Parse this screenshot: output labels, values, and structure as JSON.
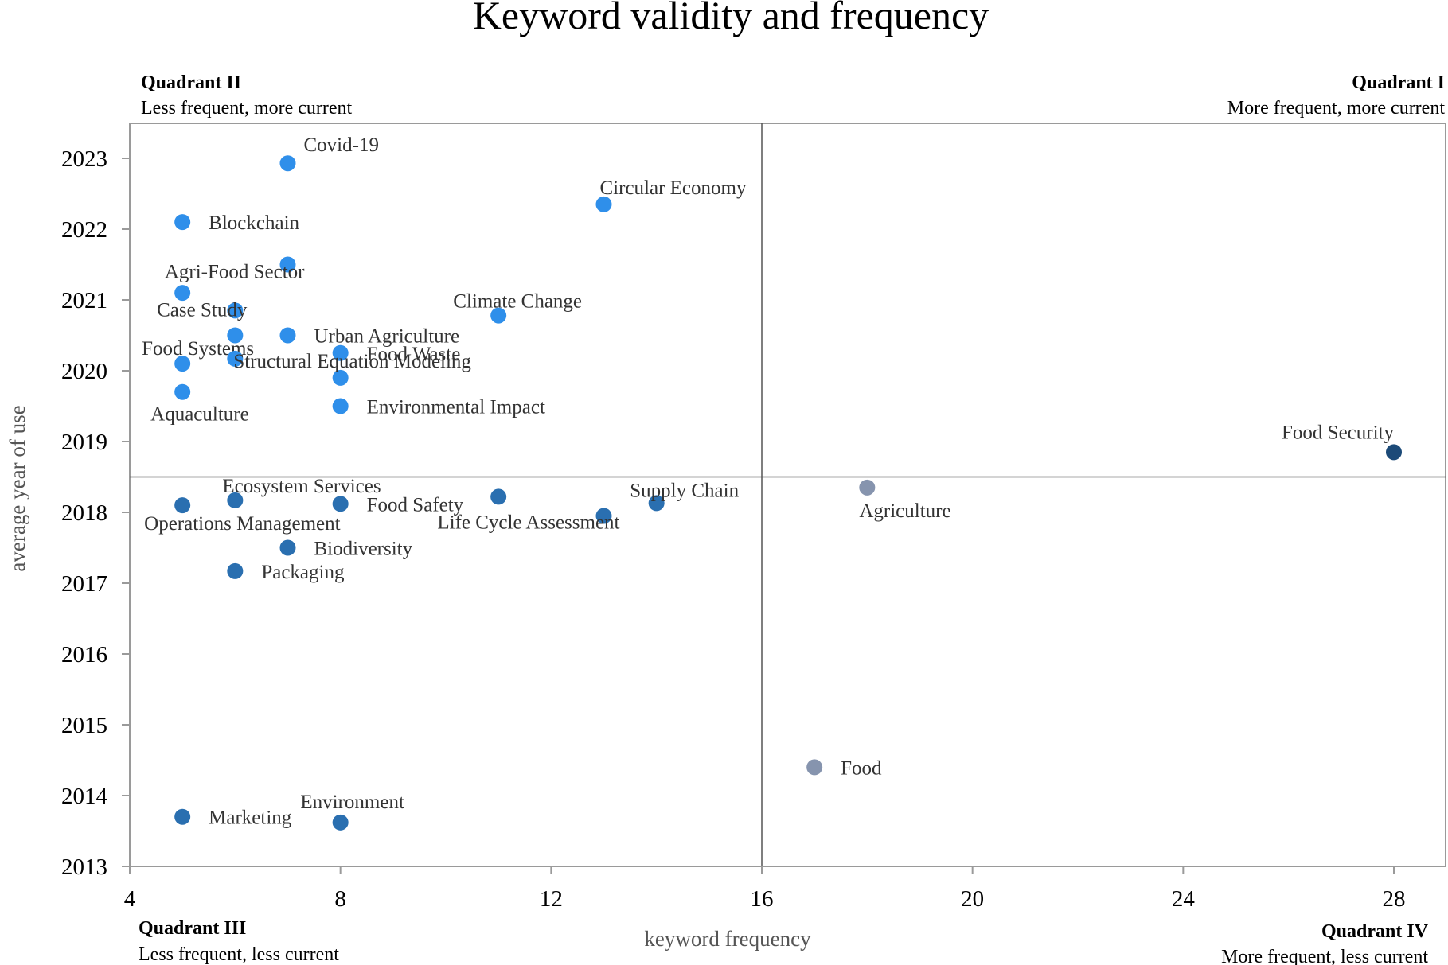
{
  "chart_data": {
    "type": "scatter",
    "title": "Keyword validity and frequency",
    "xlabel": "keyword frequency",
    "ylabel": "average year of use",
    "xlim": [
      4,
      29
    ],
    "ylim": [
      2013,
      2023.5
    ],
    "xticks": [
      4,
      8,
      12,
      16,
      20,
      24,
      28
    ],
    "yticks": [
      2013,
      2014,
      2015,
      2016,
      2017,
      2018,
      2019,
      2020,
      2021,
      2022,
      2023
    ],
    "quadrant_split": {
      "x": 16,
      "y": 2018.5
    },
    "grid": false,
    "quadrants": [
      {
        "id": "I",
        "title": "Quadrant I",
        "subtitle": "More frequent, more current",
        "position": "top-right"
      },
      {
        "id": "II",
        "title": "Quadrant II",
        "subtitle": "Less frequent, more current",
        "position": "top-left"
      },
      {
        "id": "III",
        "title": "Quadrant III",
        "subtitle": "Less frequent, less current",
        "position": "bottom-left"
      },
      {
        "id": "IV",
        "title": "Quadrant IV",
        "subtitle": "More frequent, less current",
        "position": "bottom-right"
      }
    ],
    "colors": {
      "quadrant_II": "#2f8fea",
      "quadrant_III": "#2a6fb0",
      "quadrant_I": "#1c4a78",
      "quadrant_IV": "#8694ae"
    },
    "points": [
      {
        "label": "Covid-19",
        "x": 7,
        "y": 2022.93,
        "group": "quadrant_II",
        "lpos": "ne"
      },
      {
        "label": "Circular Economy",
        "x": 13,
        "y": 2022.35,
        "group": "quadrant_II",
        "lpos": "n"
      },
      {
        "label": "Blockchain",
        "x": 5,
        "y": 2022.1,
        "group": "quadrant_II",
        "lpos": "e"
      },
      {
        "label": "Agri-Food Sector",
        "x": 7,
        "y": 2021.5,
        "group": "quadrant_II",
        "lpos": "sw"
      },
      {
        "label": "",
        "x": 5,
        "y": 2021.1,
        "group": "quadrant_II",
        "lpos": "none"
      },
      {
        "label": "Case Study",
        "x": 6,
        "y": 2020.85,
        "group": "quadrant_II",
        "lpos": "w"
      },
      {
        "label": "",
        "x": 6,
        "y": 2020.5,
        "group": "quadrant_II",
        "lpos": "none"
      },
      {
        "label": "Urban Agriculture",
        "x": 7,
        "y": 2020.5,
        "group": "quadrant_II",
        "lpos": "e"
      },
      {
        "label": "Climate Change",
        "x": 11,
        "y": 2020.78,
        "group": "quadrant_II",
        "lpos": "n"
      },
      {
        "label": "Food Waste",
        "x": 8,
        "y": 2020.25,
        "group": "quadrant_II",
        "lpos": "e"
      },
      {
        "label": "Food Systems",
        "x": 5,
        "y": 2020.1,
        "group": "quadrant_II",
        "lpos": "ne"
      },
      {
        "label": "",
        "x": 6,
        "y": 2020.17,
        "group": "quadrant_II",
        "lpos": "none"
      },
      {
        "label": "Structural Equation Modeling",
        "x": 8,
        "y": 2019.9,
        "group": "quadrant_II",
        "lpos": "n"
      },
      {
        "label": "Aquaculture",
        "x": 5,
        "y": 2019.7,
        "group": "quadrant_II",
        "lpos": "s"
      },
      {
        "label": "Environmental Impact",
        "x": 8,
        "y": 2019.5,
        "group": "quadrant_II",
        "lpos": "e"
      },
      {
        "label": "Food Security",
        "x": 28,
        "y": 2018.85,
        "group": "quadrant_I",
        "lpos": "nw"
      },
      {
        "label": "Agriculture",
        "x": 18,
        "y": 2018.35,
        "group": "quadrant_IV",
        "lpos": "s"
      },
      {
        "label": "Operations Management",
        "x": 5,
        "y": 2018.1,
        "group": "quadrant_III",
        "lpos": "se"
      },
      {
        "label": "Ecosystem Services",
        "x": 6,
        "y": 2018.17,
        "group": "quadrant_III",
        "lpos": "ne"
      },
      {
        "label": "Food Safety",
        "x": 8,
        "y": 2018.12,
        "group": "quadrant_III",
        "lpos": "e"
      },
      {
        "label": "",
        "x": 11,
        "y": 2018.22,
        "group": "quadrant_III",
        "lpos": "none"
      },
      {
        "label": "Life Cycle Assessment",
        "x": 13,
        "y": 2017.95,
        "group": "quadrant_III",
        "lpos": "sw"
      },
      {
        "label": "Supply Chain",
        "x": 14,
        "y": 2018.13,
        "group": "quadrant_III",
        "lpos": "n"
      },
      {
        "label": "Biodiversity",
        "x": 7,
        "y": 2017.5,
        "group": "quadrant_III",
        "lpos": "e"
      },
      {
        "label": "Packaging",
        "x": 6,
        "y": 2017.17,
        "group": "quadrant_III",
        "lpos": "e"
      },
      {
        "label": "Food",
        "x": 17,
        "y": 2014.4,
        "group": "quadrant_IV",
        "lpos": "e"
      },
      {
        "label": "Marketing",
        "x": 5,
        "y": 2013.7,
        "group": "quadrant_III",
        "lpos": "e"
      },
      {
        "label": "Environment",
        "x": 8,
        "y": 2013.62,
        "group": "quadrant_III",
        "lpos": "n"
      }
    ]
  }
}
